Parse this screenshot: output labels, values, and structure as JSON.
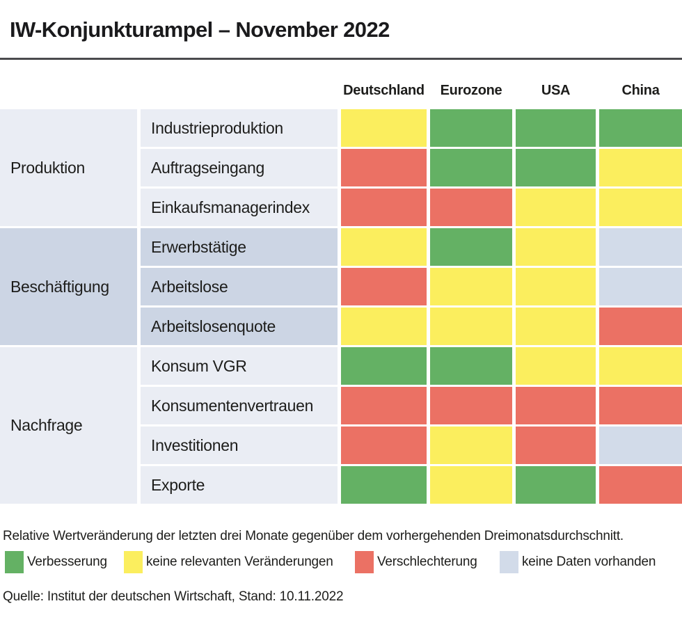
{
  "title": "IW-Konjunkturampel – November 2022",
  "columns": [
    "Deutschland",
    "Eurozone",
    "USA",
    "China"
  ],
  "table": {
    "groups": [
      {
        "category": "Produktion",
        "rows": [
          {
            "label": "Industrieproduktion",
            "cells": [
              "yellow",
              "green",
              "green",
              "green"
            ]
          },
          {
            "label": "Auftragseingang",
            "cells": [
              "red",
              "green",
              "green",
              "yellow"
            ]
          },
          {
            "label": "Einkaufsmanagerindex",
            "cells": [
              "red",
              "red",
              "yellow",
              "yellow"
            ]
          }
        ]
      },
      {
        "category": "Beschäftigung",
        "rows": [
          {
            "label": "Erwerbstätige",
            "cells": [
              "yellow",
              "green",
              "yellow",
              "nodata"
            ]
          },
          {
            "label": "Arbeitslose",
            "cells": [
              "red",
              "yellow",
              "yellow",
              "nodata"
            ]
          },
          {
            "label": "Arbeitslosenquote",
            "cells": [
              "yellow",
              "yellow",
              "yellow",
              "red"
            ]
          }
        ]
      },
      {
        "category": "Nachfrage",
        "rows": [
          {
            "label": "Konsum VGR",
            "cells": [
              "green",
              "green",
              "yellow",
              "yellow"
            ]
          },
          {
            "label": "Konsumentenvertrauen",
            "cells": [
              "red",
              "red",
              "red",
              "red"
            ]
          },
          {
            "label": "Investitionen",
            "cells": [
              "red",
              "yellow",
              "red",
              "nodata"
            ]
          },
          {
            "label": "Exporte",
            "cells": [
              "green",
              "yellow",
              "green",
              "red"
            ]
          }
        ]
      }
    ]
  },
  "note": "Relative Wertveränderung der letzten drei Monate gegenüber dem vorhergehenden Dreimonatsdurchschnitt.",
  "legend": {
    "items": [
      {
        "status": "green",
        "label": "Verbesserung"
      },
      {
        "status": "yellow",
        "label": "keine relevanten Veränderungen"
      },
      {
        "status": "red",
        "label": "Verschlechterung"
      },
      {
        "status": "nodata",
        "label": "keine Daten vorhanden"
      }
    ]
  },
  "source": "Quelle: Institut der deutschen Wirtschaft, Stand: 10.11.2022",
  "colors": {
    "green": "#64b164",
    "yellow": "#fbee5e",
    "red": "#eb7164",
    "nodata": "#d2dbe9",
    "group_light": "#eaedf4",
    "group_dark": "#ccd5e4",
    "rule": "#4b4b4d"
  },
  "chart_data": {
    "type": "heatmap",
    "title": "IW-Konjunkturampel – November 2022",
    "columns": [
      "Deutschland",
      "Eurozone",
      "USA",
      "China"
    ],
    "rows": [
      {
        "category": "Produktion",
        "indicator": "Industrieproduktion",
        "values": [
          "yellow",
          "green",
          "green",
          "green"
        ]
      },
      {
        "category": "Produktion",
        "indicator": "Auftragseingang",
        "values": [
          "red",
          "green",
          "green",
          "yellow"
        ]
      },
      {
        "category": "Produktion",
        "indicator": "Einkaufsmanagerindex",
        "values": [
          "red",
          "red",
          "yellow",
          "yellow"
        ]
      },
      {
        "category": "Beschäftigung",
        "indicator": "Erwerbstätige",
        "values": [
          "yellow",
          "green",
          "yellow",
          "nodata"
        ]
      },
      {
        "category": "Beschäftigung",
        "indicator": "Arbeitslose",
        "values": [
          "red",
          "yellow",
          "yellow",
          "nodata"
        ]
      },
      {
        "category": "Beschäftigung",
        "indicator": "Arbeitslosenquote",
        "values": [
          "yellow",
          "yellow",
          "yellow",
          "red"
        ]
      },
      {
        "category": "Nachfrage",
        "indicator": "Konsum VGR",
        "values": [
          "green",
          "green",
          "yellow",
          "yellow"
        ]
      },
      {
        "category": "Nachfrage",
        "indicator": "Konsumentenvertrauen",
        "values": [
          "red",
          "red",
          "red",
          "red"
        ]
      },
      {
        "category": "Nachfrage",
        "indicator": "Investitionen",
        "values": [
          "red",
          "yellow",
          "red",
          "nodata"
        ]
      },
      {
        "category": "Nachfrage",
        "indicator": "Exporte",
        "values": [
          "green",
          "yellow",
          "green",
          "red"
        ]
      }
    ],
    "value_meaning": {
      "green": "Verbesserung",
      "yellow": "keine relevanten Veränderungen",
      "red": "Verschlechterung",
      "nodata": "keine Daten vorhanden"
    },
    "legend_position": "bottom"
  }
}
